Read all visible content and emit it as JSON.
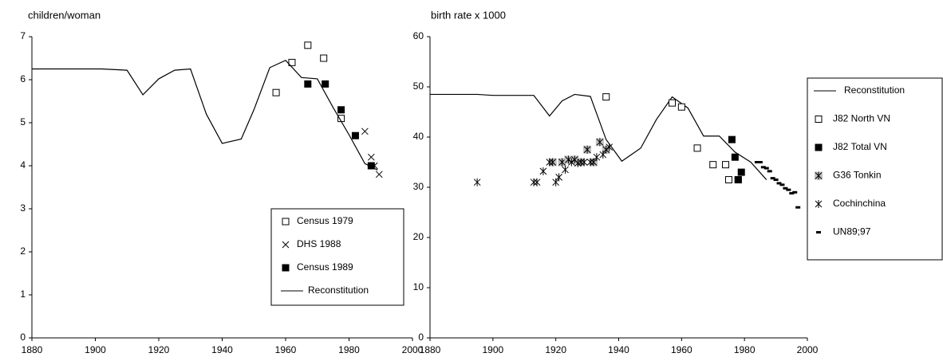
{
  "chart_data": [
    {
      "type": "line",
      "ylabel": "children/woman",
      "xlim": [
        1880,
        2000
      ],
      "xticks": [
        1880,
        1900,
        1920,
        1940,
        1960,
        1980,
        2000
      ],
      "ylim": [
        0,
        7
      ],
      "yticks": [
        0,
        1,
        2,
        3,
        4,
        5,
        6,
        7
      ],
      "legend": "lower right",
      "series": [
        {
          "name": "Census 1979",
          "marker": "square-open",
          "color": "#000000",
          "x": [
            1957,
            1962,
            1967,
            1972,
            1977.5
          ],
          "values": [
            5.7,
            6.4,
            6.8,
            6.5,
            5.1
          ]
        },
        {
          "name": "DHS 1988",
          "marker": "x",
          "color": "#000000",
          "x": [
            1985,
            1987,
            1988,
            1989.5
          ],
          "values": [
            4.8,
            4.2,
            4.0,
            3.8
          ]
        },
        {
          "name": "Census 1989",
          "marker": "square-filled",
          "color": "#000000",
          "x": [
            1967,
            1972.5,
            1977.5,
            1982,
            1987
          ],
          "values": [
            5.9,
            5.9,
            5.3,
            4.7,
            4.0
          ]
        },
        {
          "name": "Reconstitution",
          "marker": "line",
          "color": "#000000",
          "x": [
            1880,
            1902,
            1910,
            1915,
            1920,
            1925,
            1930,
            1935,
            1940,
            1946,
            1950,
            1955,
            1960,
            1965,
            1970,
            1975,
            1980,
            1985,
            1989
          ],
          "values": [
            6.25,
            6.25,
            6.22,
            5.65,
            6.02,
            6.22,
            6.25,
            5.2,
            4.52,
            4.62,
            5.3,
            6.28,
            6.45,
            6.05,
            6.02,
            5.35,
            4.72,
            4.05,
            3.9
          ]
        }
      ]
    },
    {
      "type": "line",
      "ylabel": "birth rate x 1000",
      "xlim": [
        1880,
        2000
      ],
      "xticks": [
        1880,
        1900,
        1920,
        1940,
        1960,
        1980,
        2000
      ],
      "ylim": [
        0,
        60
      ],
      "yticks": [
        0,
        10,
        20,
        30,
        40,
        50,
        60
      ],
      "legend": "right outside",
      "series": [
        {
          "name": "Reconstitution",
          "marker": "line",
          "color": "#000000",
          "x": [
            1880,
            1895,
            1900,
            1913,
            1918,
            1922,
            1926,
            1931,
            1936,
            1941,
            1947,
            1952,
            1957,
            1962,
            1967,
            1972,
            1977,
            1982,
            1987
          ],
          "values": [
            48.5,
            48.5,
            48.3,
            48.3,
            44.2,
            47.2,
            48.5,
            48.1,
            39.5,
            35.2,
            37.8,
            43.5,
            48.0,
            45.8,
            40.2,
            40.2,
            37.0,
            35.0,
            31.5
          ]
        },
        {
          "name": "J82 North VN",
          "marker": "square-open",
          "color": "#000000",
          "x": [
            1936,
            1957,
            1960,
            1965,
            1970,
            1974,
            1975,
            1978
          ],
          "values": [
            48,
            46.8,
            46,
            37.8,
            34.5,
            34.5,
            31.5,
            31.5
          ]
        },
        {
          "name": "J82 Total VN",
          "marker": "square-filled",
          "color": "#000000",
          "x": [
            1976,
            1977,
            1978,
            1979
          ],
          "values": [
            39.5,
            36,
            31.5,
            33
          ]
        },
        {
          "name": "G36 Tonkin",
          "marker": "asterisk-boxed",
          "color": "#c0c0c0",
          "x": [
            1919,
            1922,
            1924,
            1926,
            1928,
            1930,
            1932,
            1934,
            1936
          ],
          "values": [
            35,
            35,
            35.5,
            35.5,
            35,
            37.5,
            35,
            39,
            37.5
          ]
        },
        {
          "name": "Cochinchina",
          "marker": "asterisk",
          "color": "#000000",
          "x": [
            1895,
            1913,
            1914,
            1916,
            1918,
            1920,
            1921,
            1923,
            1925,
            1927,
            1929,
            1931,
            1933,
            1935,
            1937
          ],
          "values": [
            31,
            31,
            31,
            33.2,
            35,
            31,
            32,
            33.5,
            35,
            34.8,
            35,
            35,
            36,
            36.5,
            38
          ]
        },
        {
          "name": "UN89;97",
          "marker": "dash",
          "color": "#000000",
          "x": [
            1984,
            1985,
            1986,
            1987,
            1988,
            1989,
            1990,
            1991,
            1992,
            1993,
            1994,
            1995,
            1996,
            1997
          ],
          "values": [
            35,
            35,
            34,
            33.8,
            33.2,
            31.8,
            31.5,
            30.8,
            30.5,
            29.8,
            29.5,
            28.8,
            29,
            26
          ]
        }
      ]
    }
  ]
}
